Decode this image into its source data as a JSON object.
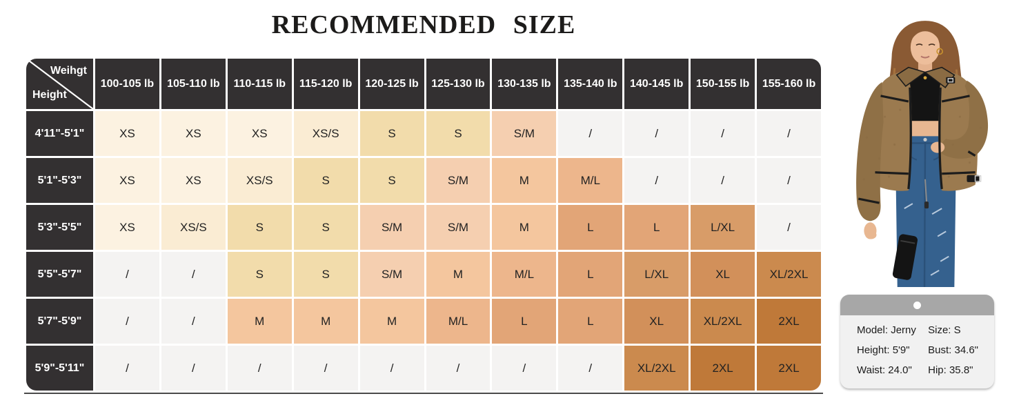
{
  "title": "RECOMMENDED SIZE",
  "chart_data": {
    "type": "table",
    "corner": {
      "weight_label": "Weihgt",
      "height_label": "Height"
    },
    "weight_columns": [
      "100-105 lb",
      "105-110 lb",
      "110-115 lb",
      "115-120 lb",
      "120-125 lb",
      "125-130 lb",
      "130-135 lb",
      "135-140 lb",
      "140-145 lb",
      "150-155 lb",
      "155-160 lb"
    ],
    "rows": [
      {
        "height": "4'11\"-5'1\"",
        "sizes": [
          "XS",
          "XS",
          "XS",
          "XS/S",
          "S",
          "S",
          "S/M",
          "/",
          "/",
          "/",
          "/"
        ]
      },
      {
        "height": "5'1\"-5'3\"",
        "sizes": [
          "XS",
          "XS",
          "XS/S",
          "S",
          "S",
          "S/M",
          "M",
          "M/L",
          "/",
          "/",
          "/"
        ]
      },
      {
        "height": "5'3\"-5'5\"",
        "sizes": [
          "XS",
          "XS/S",
          "S",
          "S",
          "S/M",
          "S/M",
          "M",
          "L",
          "L",
          "L/XL",
          "/"
        ]
      },
      {
        "height": "5'5\"-5'7\"",
        "sizes": [
          "/",
          "/",
          "S",
          "S",
          "S/M",
          "M",
          "M/L",
          "L",
          "L/XL",
          "XL",
          "XL/2XL"
        ]
      },
      {
        "height": "5'7\"-5'9\"",
        "sizes": [
          "/",
          "/",
          "M",
          "M",
          "M",
          "M/L",
          "L",
          "L",
          "XL",
          "XL/2XL",
          "2XL"
        ]
      },
      {
        "height": "5'9\"-5'11\"",
        "sizes": [
          "/",
          "/",
          "/",
          "/",
          "/",
          "/",
          "/",
          "/",
          "XL/2XL",
          "2XL",
          "2XL"
        ]
      }
    ],
    "empty_value": "/",
    "colors": {
      "header_bg": "#333031",
      "header_text": "#ffffff",
      "size_colors": {
        "XS": "#fcf2e1",
        "XS/S": "#faecd3",
        "S": "#f2dcab",
        "S/M": "#f5cfb0",
        "M": "#f4c69e",
        "M/L": "#edb68c",
        "L": "#e2a577",
        "L/XL": "#d89c68",
        "XL": "#d2905a",
        "XL/2XL": "#cb8a4e",
        "2XL": "#bf7939",
        "/": "#f4f3f2"
      }
    }
  },
  "model_card": {
    "model": "Model: Jerny",
    "size": "Size: S",
    "height": "Height: 5'9\"",
    "bust": "Bust: 34.6\"",
    "waist": "Waist: 24.0\"",
    "hip": "Hip: 35.8\""
  }
}
